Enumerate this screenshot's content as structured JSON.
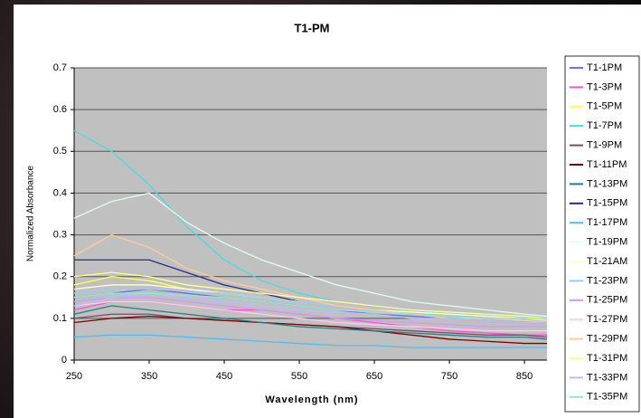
{
  "chart_data": {
    "type": "line",
    "title": "T1-PM",
    "x_label": "Wavelength (nm)",
    "y_label": "Normalized Absorbance",
    "x": [
      250,
      300,
      350,
      400,
      450,
      500,
      550,
      600,
      650,
      700,
      750,
      800,
      850,
      880
    ],
    "xlim": [
      250,
      880
    ],
    "xticks": [
      250,
      350,
      450,
      550,
      650,
      750,
      850
    ],
    "ylim": [
      0,
      0.7
    ],
    "yticks": [
      0,
      0.1,
      0.2,
      0.3,
      0.4,
      0.5,
      0.6,
      0.7
    ],
    "grid": true,
    "legend": "right",
    "series": [
      {
        "name": "T1-1PM",
        "color": "#6f6fe8",
        "values": [
          0.15,
          0.16,
          0.17,
          0.16,
          0.15,
          0.14,
          0.13,
          0.12,
          0.11,
          0.105,
          0.1,
          0.095,
          0.09,
          0.09
        ]
      },
      {
        "name": "T1-3PM",
        "color": "#ff55cc",
        "values": [
          0.12,
          0.14,
          0.14,
          0.13,
          0.12,
          0.12,
          0.11,
          0.1,
          0.09,
          0.08,
          0.07,
          0.065,
          0.06,
          0.06
        ]
      },
      {
        "name": "T1-5PM",
        "color": "#ffff55",
        "values": [
          0.18,
          0.2,
          0.19,
          0.17,
          0.16,
          0.15,
          0.14,
          0.13,
          0.12,
          0.11,
          0.105,
          0.1,
          0.1,
          0.095
        ]
      },
      {
        "name": "T1-7PM",
        "color": "#44dddd",
        "values": [
          0.55,
          0.5,
          0.42,
          0.32,
          0.24,
          0.19,
          0.16,
          0.14,
          0.13,
          0.12,
          0.115,
          0.11,
          0.105,
          0.1
        ]
      },
      {
        "name": "T1-9PM",
        "color": "#7a4a6a",
        "values": [
          0.1,
          0.11,
          0.11,
          0.1,
          0.095,
          0.09,
          0.085,
          0.08,
          0.075,
          0.07,
          0.065,
          0.06,
          0.06,
          0.055
        ]
      },
      {
        "name": "T1-11PM",
        "color": "#800000",
        "values": [
          0.09,
          0.1,
          0.105,
          0.1,
          0.095,
          0.09,
          0.085,
          0.08,
          0.07,
          0.06,
          0.05,
          0.045,
          0.04,
          0.04
        ]
      },
      {
        "name": "T1-13PM",
        "color": "#208080",
        "values": [
          0.11,
          0.13,
          0.12,
          0.11,
          0.1,
          0.09,
          0.08,
          0.075,
          0.07,
          0.065,
          0.06,
          0.055,
          0.055,
          0.05
        ]
      },
      {
        "name": "T1-15PM",
        "color": "#2a2a80",
        "values": [
          0.24,
          0.24,
          0.24,
          0.21,
          0.18,
          0.16,
          0.14,
          0.13,
          0.12,
          0.11,
          0.105,
          0.1,
          0.1,
          0.1
        ]
      },
      {
        "name": "T1-17PM",
        "color": "#55bbee",
        "values": [
          0.055,
          0.06,
          0.06,
          0.055,
          0.05,
          0.045,
          0.04,
          0.035,
          0.035,
          0.03,
          0.03,
          0.03,
          0.03,
          0.03
        ]
      },
      {
        "name": "T1-19PM",
        "color": "#ddffee",
        "values": [
          0.34,
          0.38,
          0.4,
          0.33,
          0.28,
          0.24,
          0.21,
          0.18,
          0.16,
          0.14,
          0.13,
          0.12,
          0.11,
          0.105
        ]
      },
      {
        "name": "T1-21AM",
        "color": "#ffffcc",
        "values": [
          0.17,
          0.18,
          0.18,
          0.17,
          0.16,
          0.15,
          0.14,
          0.13,
          0.12,
          0.115,
          0.11,
          0.105,
          0.1,
          0.1
        ]
      },
      {
        "name": "T1-23PM",
        "color": "#99ccff",
        "values": [
          0.16,
          0.17,
          0.17,
          0.165,
          0.16,
          0.15,
          0.14,
          0.13,
          0.12,
          0.11,
          0.105,
          0.1,
          0.1,
          0.1
        ]
      },
      {
        "name": "T1-25PM",
        "color": "#cc99ff",
        "values": [
          0.14,
          0.15,
          0.15,
          0.14,
          0.13,
          0.12,
          0.11,
          0.1,
          0.095,
          0.09,
          0.085,
          0.08,
          0.08,
          0.08
        ]
      },
      {
        "name": "T1-27PM",
        "color": "#ffccee",
        "values": [
          0.13,
          0.14,
          0.14,
          0.13,
          0.12,
          0.11,
          0.1,
          0.09,
          0.085,
          0.08,
          0.075,
          0.07,
          0.07,
          0.07
        ]
      },
      {
        "name": "T1-29PM",
        "color": "#ffcc99",
        "values": [
          0.25,
          0.3,
          0.27,
          0.22,
          0.19,
          0.17,
          0.15,
          0.13,
          0.12,
          0.11,
          0.1,
          0.1,
          0.095,
          0.09
        ]
      },
      {
        "name": "T1-31PM",
        "color": "#ffff99",
        "values": [
          0.2,
          0.21,
          0.2,
          0.18,
          0.17,
          0.16,
          0.15,
          0.14,
          0.13,
          0.12,
          0.115,
          0.11,
          0.105,
          0.1
        ]
      },
      {
        "name": "T1-33PM",
        "color": "#bbbbff",
        "values": [
          0.13,
          0.15,
          0.16,
          0.15,
          0.14,
          0.13,
          0.12,
          0.115,
          0.11,
          0.1,
          0.1,
          0.095,
          0.09,
          0.09
        ]
      },
      {
        "name": "T1-35PM",
        "color": "#88eecc",
        "values": [
          0.15,
          0.16,
          0.16,
          0.155,
          0.15,
          0.14,
          0.13,
          0.12,
          0.115,
          0.11,
          0.105,
          0.1,
          0.1,
          0.1
        ]
      }
    ]
  }
}
